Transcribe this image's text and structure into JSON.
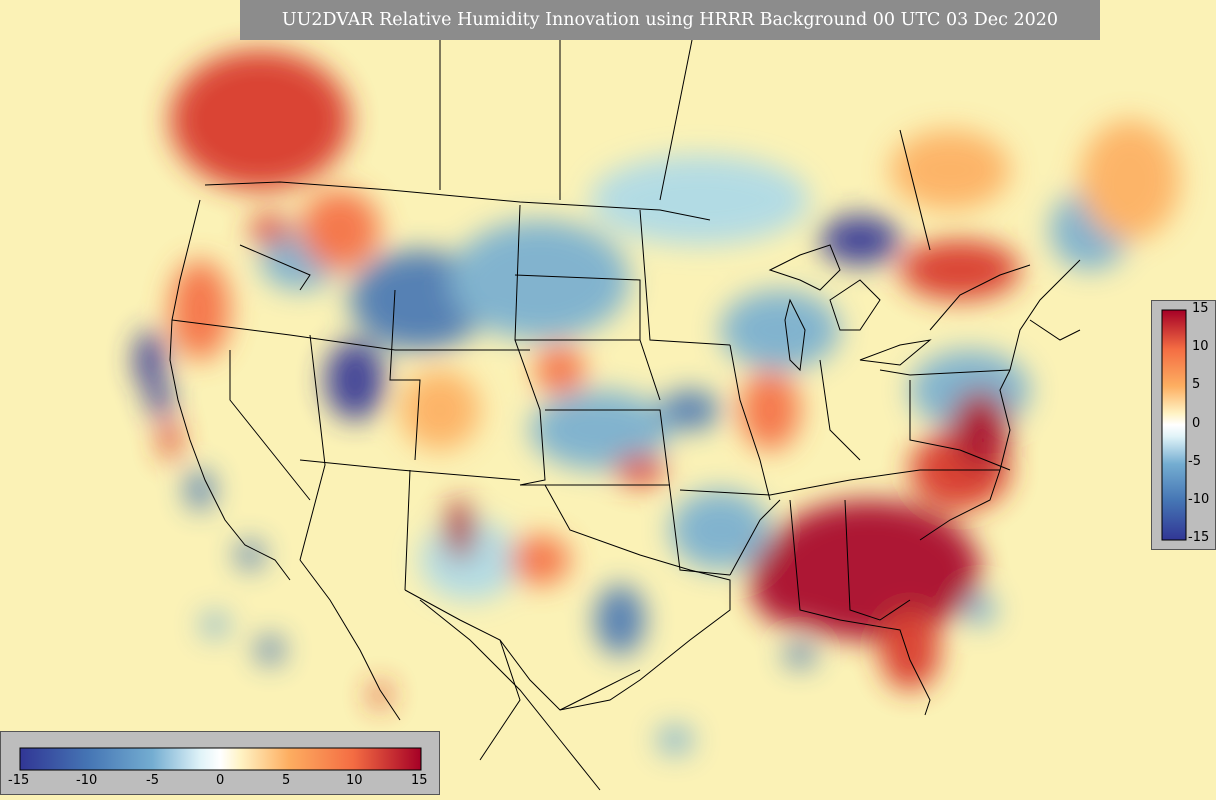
{
  "title": "UU2DVAR Relative Humidity Innovation using HRRR Background 00 UTC 03 Dec 2020",
  "colors": {
    "background_field": "#fbf2b6",
    "title_bg": "#8c8c8c",
    "colorbar_panel_bg": "#bdbdbd",
    "border_lines": "#000000",
    "scale_low": "#313695",
    "scale_mid": "#ffffff",
    "scale_high": "#a50026"
  },
  "colorbar_right": {
    "min": -15,
    "max": 15,
    "tick_labels": [
      "15",
      "10",
      "5",
      "0",
      "-5",
      "-10",
      "-15"
    ]
  },
  "colorbar_bottom": {
    "min": -15,
    "max": 15,
    "tick_labels": [
      "-15",
      "-10",
      "-5",
      "0",
      "5",
      "10",
      "15"
    ]
  }
}
